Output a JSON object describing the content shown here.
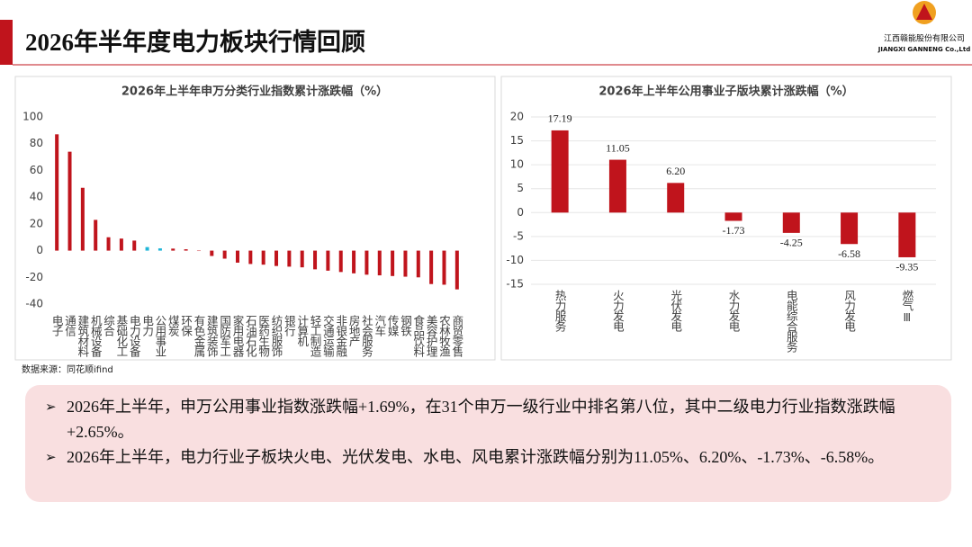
{
  "header": {
    "title": "2026年半年度电力板块行情回顾",
    "logo_cn": "江西赣能股份有限公司",
    "logo_en": "JIANGXI GANNENG Co.,Ltd"
  },
  "chart_data": [
    {
      "type": "bar",
      "title": "2026年上半年申万分类行业指数累计涨跌幅（%）",
      "categories": [
        "电子",
        "通信",
        "建筑材料",
        "机械设备",
        "综合",
        "基础化工",
        "电力设备",
        "电力",
        "公用事业",
        "煤炭",
        "环保",
        "有色金属",
        "建筑装饰",
        "国防军工",
        "家用电器",
        "石油石化",
        "医药生物",
        "纺织服饰",
        "银行",
        "计算机",
        "轻工制造",
        "交通运输",
        "非银金融",
        "房地产",
        "社会服务",
        "汽车",
        "传媒",
        "钢铁",
        "食品饮料",
        "美容护理",
        "农林牧渔",
        "商贸零售"
      ],
      "values": [
        87,
        74,
        47,
        23,
        10,
        9,
        7.5,
        2.65,
        1.69,
        1.5,
        1,
        -0.3,
        -4,
        -6,
        -9,
        -10,
        -10.5,
        -11.5,
        -12,
        -12.5,
        -14,
        -15,
        -16,
        -17,
        -18,
        -18.5,
        -19,
        -19.5,
        -20,
        -25,
        -25.5,
        -29
      ],
      "colors": [
        "#c0141c",
        "#c0141c",
        "#c0141c",
        "#c0141c",
        "#c0141c",
        "#c0141c",
        "#c0141c",
        "#1fb5d8",
        "#1fb5d8",
        "#c0141c",
        "#c0141c",
        "#c0141c",
        "#c0141c",
        "#c0141c",
        "#c0141c",
        "#c0141c",
        "#c0141c",
        "#c0141c",
        "#c0141c",
        "#c0141c",
        "#c0141c",
        "#c0141c",
        "#c0141c",
        "#c0141c",
        "#c0141c",
        "#c0141c",
        "#c0141c",
        "#c0141c",
        "#c0141c",
        "#c0141c",
        "#c0141c",
        "#c0141c"
      ],
      "ylim": [
        -40,
        100
      ],
      "yticks": [
        -40,
        -20,
        0,
        20,
        40,
        60,
        80,
        100
      ],
      "grid": false
    },
    {
      "type": "bar",
      "title": "2026年上半年公用事业子版块累计涨跌幅（%）",
      "categories": [
        "热力服务",
        "火力发电",
        "光伏发电",
        "水力发电",
        "电能综合服务",
        "风力发电",
        "燃气Ⅲ"
      ],
      "values": [
        17.19,
        11.05,
        6.2,
        -1.73,
        -4.25,
        -6.58,
        -9.35
      ],
      "value_labels": [
        "17.19",
        "11.05",
        "6.20",
        "-1.73",
        "-4.25",
        "-6.58",
        "-9.35"
      ],
      "color": "#c0141c",
      "ylim": [
        -15,
        20
      ],
      "yticks": [
        -15,
        -10,
        -5,
        0,
        5,
        10,
        15,
        20
      ],
      "grid": true
    }
  ],
  "source": "数据来源：同花顺ifind",
  "bullets": [
    "2026年上半年，申万公用事业指数涨跌幅+1.69%，在31个申万一级行业中排名第八位，其中二级电力行业指数涨跌幅+2.65%。",
    "2026年上半年，电力行业子板块火电、光伏发电、水电、风电累计涨跌幅分别为11.05%、6.20%、-1.73%、-6.58%。"
  ]
}
